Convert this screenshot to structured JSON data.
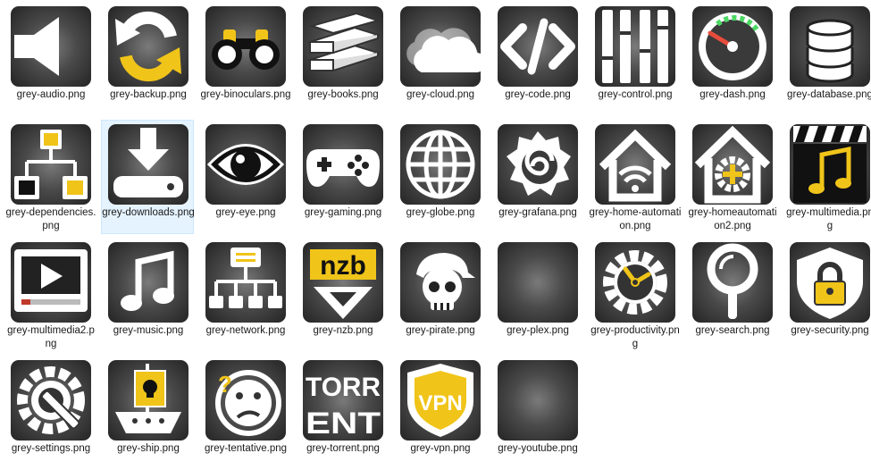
{
  "files": [
    {
      "name": "grey-audio.png",
      "icon": "speaker-icon"
    },
    {
      "name": "grey-backup.png",
      "icon": "sync-arrows-icon"
    },
    {
      "name": "grey-binoculars.png",
      "icon": "binoculars-icon"
    },
    {
      "name": "grey-books.png",
      "icon": "books-icon"
    },
    {
      "name": "grey-cloud.png",
      "icon": "cloud-icon"
    },
    {
      "name": "grey-code.png",
      "icon": "code-brackets-icon"
    },
    {
      "name": "grey-control.png",
      "icon": "sliders-icon"
    },
    {
      "name": "grey-dash.png",
      "icon": "gauge-icon"
    },
    {
      "name": "grey-database.png",
      "icon": "database-icon"
    },
    {
      "name": "grey-dependencies.png",
      "icon": "hierarchy-icon"
    },
    {
      "name": "grey-downloads.png",
      "icon": "download-icon",
      "selected": true
    },
    {
      "name": "grey-eye.png",
      "icon": "eye-icon"
    },
    {
      "name": "grey-gaming.png",
      "icon": "gamepad-icon"
    },
    {
      "name": "grey-globe.png",
      "icon": "globe-icon"
    },
    {
      "name": "grey-grafana.png",
      "icon": "grafana-icon"
    },
    {
      "name": "grey-home-automation.png",
      "icon": "home-wifi-icon"
    },
    {
      "name": "grey-homeautomation2.png",
      "icon": "home-gear-icon"
    },
    {
      "name": "grey-multimedia.png",
      "icon": "clapper-music-icon"
    },
    {
      "name": "grey-multimedia2.png",
      "icon": "video-player-icon"
    },
    {
      "name": "grey-music.png",
      "icon": "music-note-icon"
    },
    {
      "name": "grey-network.png",
      "icon": "network-icon"
    },
    {
      "name": "grey-nzb.png",
      "icon": "nzb-icon"
    },
    {
      "name": "grey-pirate.png",
      "icon": "pirate-skull-icon"
    },
    {
      "name": "grey-plex.png",
      "icon": "blank-icon"
    },
    {
      "name": "grey-productivity.png",
      "icon": "gear-clock-icon"
    },
    {
      "name": "grey-search.png",
      "icon": "magnifier-icon"
    },
    {
      "name": "grey-security.png",
      "icon": "shield-lock-icon"
    },
    {
      "name": "grey-settings.png",
      "icon": "gear-wrench-icon"
    },
    {
      "name": "grey-ship.png",
      "icon": "pirate-ship-icon"
    },
    {
      "name": "grey-tentative.png",
      "icon": "tentative-face-icon"
    },
    {
      "name": "grey-torrent.png",
      "icon": "torrent-text-icon",
      "lines": [
        "TORR",
        "ENT"
      ]
    },
    {
      "name": "grey-vpn.png",
      "icon": "vpn-badge-icon",
      "text": "VPN"
    },
    {
      "name": "grey-youtube.png",
      "icon": "blank-icon"
    }
  ],
  "nzb_label": "nzb",
  "colors": {
    "tile_selected_bg": "#e5f3ff",
    "tile_selected_border": "#cce8ff",
    "icon_white": "#ffffff",
    "accent_yellow": "#f0c419",
    "gauge_green": "#4cd964",
    "gauge_red": "#e74c3c"
  }
}
